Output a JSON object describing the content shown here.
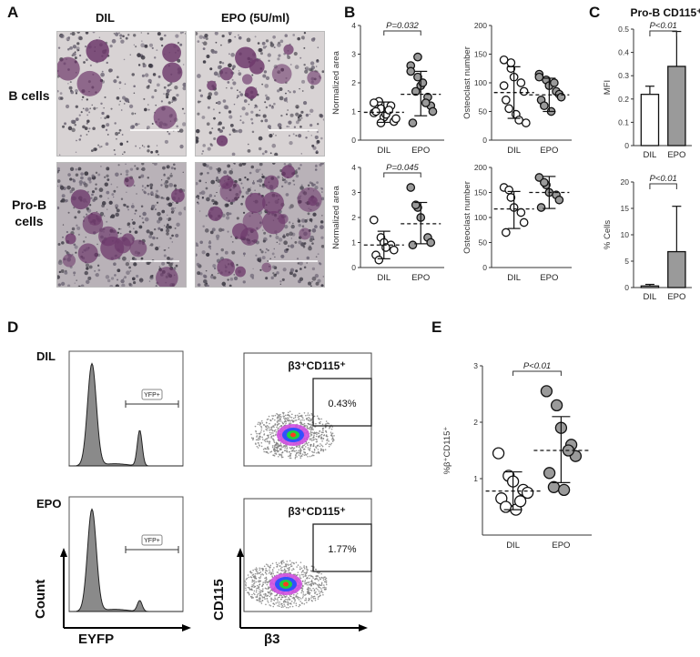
{
  "panels": {
    "A": "A",
    "B": "B",
    "C": "C",
    "D": "D",
    "E": "E"
  },
  "panel_a": {
    "col_headers": [
      "DIL",
      "EPO (5U/ml)"
    ],
    "row_labels": [
      "B cells",
      "Pro-B\ncells"
    ]
  },
  "panel_d": {
    "rows": [
      "DIL",
      "EPO"
    ],
    "gate_label": "YFP+",
    "dot_title": "β3⁺CD115⁺",
    "percents": [
      "0.43%",
      "1.77%"
    ],
    "hist_ylabel": "Count",
    "hist_xlabel": "EYFP",
    "dot_ylabel": "CD115",
    "dot_xlabel": "β3"
  },
  "chart_data": [
    {
      "id": "B-top-left",
      "type": "scatter",
      "ylabel": "Normalized area",
      "categories": [
        "DIL",
        "EPO"
      ],
      "ylim": [
        0,
        4
      ],
      "yticks": [
        0,
        1,
        2,
        3,
        4
      ],
      "pvalue": "P=0.032",
      "series": [
        {
          "name": "DIL",
          "values": [
            0.95,
            1.1,
            0.8,
            1.2,
            0.65,
            1.0,
            1.35,
            0.9,
            1.05,
            0.75,
            1.3,
            0.6
          ],
          "mean": 0.97,
          "sd_low": 0.62,
          "sd_high": 1.33
        },
        {
          "name": "EPO",
          "values": [
            2.6,
            2.2,
            1.9,
            1.5,
            1.2,
            0.6,
            1.7,
            2.0,
            1.3,
            1.0,
            2.4,
            2.9
          ],
          "mean": 1.6,
          "sd_low": 0.85,
          "sd_high": 2.4
        }
      ]
    },
    {
      "id": "B-top-right",
      "type": "scatter",
      "ylabel": "Osteoclast number",
      "categories": [
        "DIL",
        "EPO"
      ],
      "ylim": [
        0,
        200
      ],
      "yticks": [
        0,
        50,
        100,
        150,
        200
      ],
      "pvalue": "",
      "series": [
        {
          "name": "DIL",
          "values": [
            140,
            125,
            110,
            100,
            85,
            70,
            55,
            45,
            35,
            30,
            95,
            135
          ],
          "mean": 83,
          "sd_low": 38,
          "sd_high": 128
        },
        {
          "name": "EPO",
          "values": [
            115,
            105,
            95,
            85,
            80,
            70,
            60,
            50,
            100,
            75,
            110
          ],
          "mean": 79,
          "sd_low": 50,
          "sd_high": 108
        }
      ]
    },
    {
      "id": "B-bottom-left",
      "type": "scatter",
      "ylabel": "Normalized area",
      "categories": [
        "DIL",
        "EPO"
      ],
      "ylim": [
        0,
        4
      ],
      "yticks": [
        0,
        1,
        2,
        3,
        4
      ],
      "pvalue": "P=0.045",
      "series": [
        {
          "name": "DIL",
          "values": [
            1.9,
            1.2,
            1.0,
            0.9,
            0.7,
            0.5,
            0.3,
            0.8
          ],
          "mean": 0.9,
          "sd_low": 0.35,
          "sd_high": 1.45
        },
        {
          "name": "EPO",
          "values": [
            3.2,
            2.4,
            2.0,
            1.2,
            1.0,
            0.9,
            2.5
          ],
          "mean": 1.75,
          "sd_low": 0.95,
          "sd_high": 2.6
        }
      ]
    },
    {
      "id": "B-bottom-right",
      "type": "scatter",
      "ylabel": "Osteoclast number",
      "categories": [
        "DIL",
        "EPO"
      ],
      "ylim": [
        0,
        200
      ],
      "yticks": [
        0,
        50,
        100,
        150,
        200
      ],
      "pvalue": "",
      "series": [
        {
          "name": "DIL",
          "values": [
            160,
            140,
            120,
            110,
            90,
            70,
            155
          ],
          "mean": 117,
          "sd_low": 78,
          "sd_high": 152
        },
        {
          "name": "EPO",
          "values": [
            180,
            165,
            150,
            145,
            135,
            120,
            170
          ],
          "mean": 150,
          "sd_low": 118,
          "sd_high": 182
        }
      ]
    },
    {
      "id": "C-top",
      "type": "bar",
      "title": "Pro-B CD115⁺",
      "ylabel": "MFI",
      "categories": [
        "DIL",
        "EPO"
      ],
      "values": [
        0.22,
        0.34
      ],
      "errors": [
        0.035,
        0.15
      ],
      "ylim": [
        0,
        0.5
      ],
      "yticks": [
        0.0,
        0.1,
        0.2,
        0.3,
        0.4,
        0.5
      ],
      "pvalue": "P<0.01",
      "colors": [
        "#ffffff",
        "#9a9a9a"
      ]
    },
    {
      "id": "C-bottom",
      "type": "bar",
      "ylabel": "% Cells",
      "categories": [
        "DIL",
        "EPO"
      ],
      "values": [
        0.3,
        6.8
      ],
      "errors": [
        0.3,
        8.6
      ],
      "ylim": [
        0,
        20
      ],
      "yticks": [
        0,
        5,
        10,
        15,
        20
      ],
      "pvalue": "P<0.01",
      "colors": [
        "#ffffff",
        "#9a9a9a"
      ]
    },
    {
      "id": "E",
      "type": "scatter",
      "ylabel": "%β⁺CD115⁺",
      "categories": [
        "DIL",
        "EPO"
      ],
      "ylim": [
        0,
        3
      ],
      "yticks": [
        1,
        2,
        3
      ],
      "pvalue": "P<0.01",
      "series": [
        {
          "name": "DIL",
          "values": [
            1.45,
            1.05,
            0.95,
            0.8,
            0.75,
            0.65,
            0.5,
            0.45,
            0.6
          ],
          "mean": 0.78,
          "sd_low": 0.45,
          "sd_high": 1.12
        },
        {
          "name": "EPO",
          "values": [
            2.55,
            2.3,
            1.9,
            1.6,
            1.4,
            1.1,
            0.85,
            0.8,
            1.5
          ],
          "mean": 1.5,
          "sd_low": 0.93,
          "sd_high": 2.1
        }
      ]
    }
  ]
}
